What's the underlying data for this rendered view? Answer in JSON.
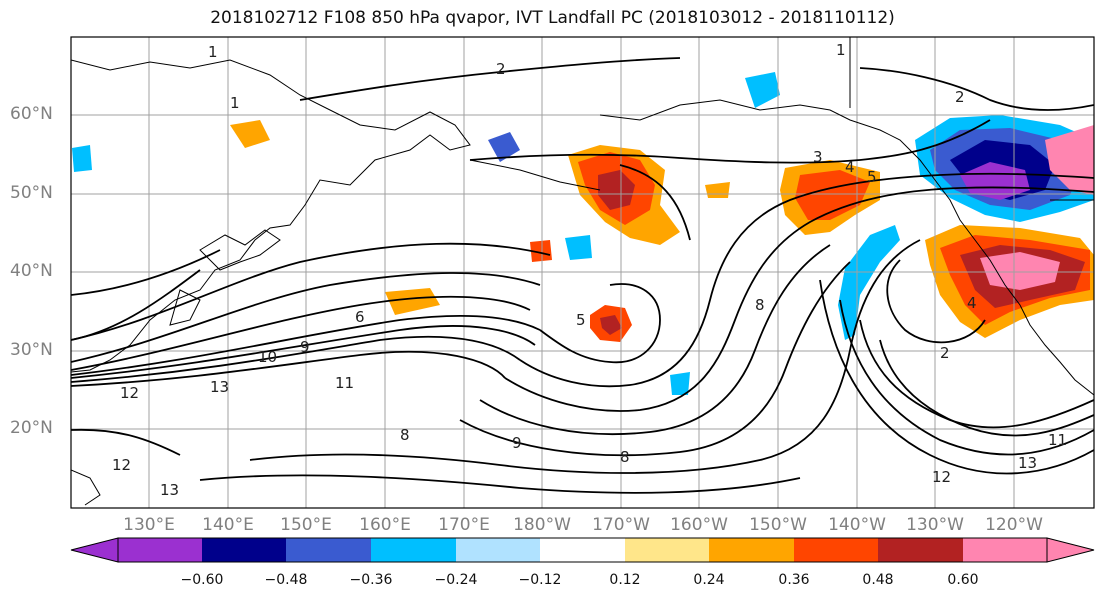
{
  "title": "2018102712 F108 850 hPa qvapor, IVT Landfall PC (2018103012 - 2018110112)",
  "lat_labels": [
    "60°N",
    "50°N",
    "40°N",
    "30°N",
    "20°N"
  ],
  "lon_labels": [
    "130°E",
    "140°E",
    "150°E",
    "160°E",
    "170°E",
    "180°W",
    "170°W",
    "160°W",
    "150°W",
    "140°W",
    "130°W",
    "120°W"
  ],
  "colorbar": {
    "ticks": [
      "−0.60",
      "−0.48",
      "−0.36",
      "−0.24",
      "−0.12",
      "0.12",
      "0.24",
      "0.36",
      "0.48",
      "0.60"
    ],
    "colors": [
      "#9b30d0",
      "#00008b",
      "#3a5bd0",
      "#00bfff",
      "#b0e2ff",
      "#ffffff",
      "#ffe68a",
      "#ffa500",
      "#ff4500",
      "#b22222",
      "#ff85b0"
    ]
  },
  "contour_labels": [
    "1",
    "1",
    "1",
    "2",
    "2",
    "3",
    "4",
    "5",
    "5",
    "6",
    "8",
    "8",
    "8",
    "9",
    "9",
    "10",
    "11",
    "11",
    "12",
    "12",
    "12",
    "13",
    "13",
    "13",
    "4",
    "2"
  ]
}
